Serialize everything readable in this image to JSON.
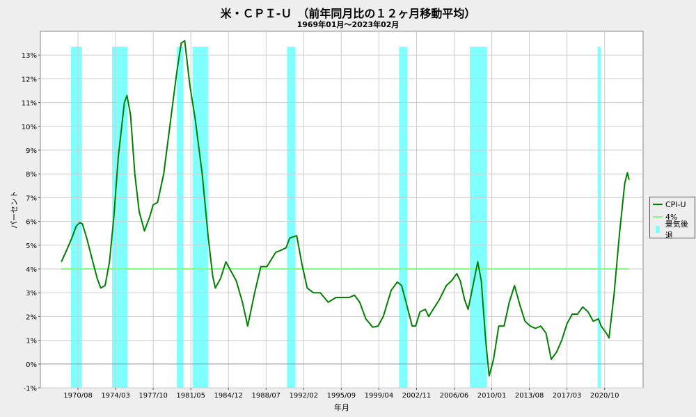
{
  "colors": {
    "cpi": "#008000",
    "ref": "#80ff80",
    "recession": "#80ffff",
    "zero": "#8c8cd2",
    "grid": "#cccccc",
    "plot_bg": "#ffffff",
    "page_bg": "#eeeeee"
  },
  "chart_data": {
    "type": "line",
    "title": "米・ＣＰＩ-Ｕ　（前年同月比の１２ヶ月移動平均）",
    "subtitle": "1969年01月～2023年02月",
    "xlabel": "年月",
    "ylabel": "パーセント",
    "ylim": [
      -1,
      14
    ],
    "yticks": [
      -1,
      0,
      1,
      2,
      3,
      4,
      5,
      6,
      7,
      8,
      9,
      10,
      11,
      12,
      13
    ],
    "ytick_labels": [
      "-1%",
      "0%",
      "1%",
      "2%",
      "3%",
      "4%",
      "5%",
      "6%",
      "7%",
      "8%",
      "9%",
      "10%",
      "11%",
      "12%",
      "13%"
    ],
    "xlim": [
      "1967-01",
      "2024-06"
    ],
    "xtick_labels": [
      "1970/08",
      "1974/03",
      "1977/10",
      "1981/05",
      "1984/12",
      "1988/07",
      "1992/02",
      "1995/09",
      "1999/04",
      "2002/11",
      "2006/06",
      "2010/01",
      "2013/08",
      "2017/03",
      "2020/10"
    ],
    "grid": true,
    "legend_position": "right",
    "legend": [
      "CPI-U",
      "4%",
      "景気後退"
    ],
    "series": [
      {
        "name": "CPI-U",
        "points": [
          [
            "1969-01",
            4.3
          ],
          [
            "1969-06",
            4.7
          ],
          [
            "1970-01",
            5.3
          ],
          [
            "1970-06",
            5.8
          ],
          [
            "1970-10",
            5.95
          ],
          [
            "1971-01",
            5.9
          ],
          [
            "1971-06",
            5.3
          ],
          [
            "1972-01",
            4.3
          ],
          [
            "1972-06",
            3.6
          ],
          [
            "1972-10",
            3.2
          ],
          [
            "1973-03",
            3.3
          ],
          [
            "1973-08",
            4.3
          ],
          [
            "1974-01",
            6.2
          ],
          [
            "1974-06",
            8.7
          ],
          [
            "1975-01",
            11.0
          ],
          [
            "1975-04",
            11.3
          ],
          [
            "1975-08",
            10.5
          ],
          [
            "1976-01",
            8.0
          ],
          [
            "1976-06",
            6.4
          ],
          [
            "1976-12",
            5.6
          ],
          [
            "1977-06",
            6.2
          ],
          [
            "1977-10",
            6.7
          ],
          [
            "1978-03",
            6.8
          ],
          [
            "1978-10",
            8.0
          ],
          [
            "1979-06",
            10.3
          ],
          [
            "1980-01",
            12.3
          ],
          [
            "1980-06",
            13.5
          ],
          [
            "1980-10",
            13.6
          ],
          [
            "1981-04",
            11.7
          ],
          [
            "1981-10",
            10.3
          ],
          [
            "1982-06",
            8.0
          ],
          [
            "1983-01",
            5.3
          ],
          [
            "1983-06",
            3.7
          ],
          [
            "1983-09",
            3.2
          ],
          [
            "1984-03",
            3.6
          ],
          [
            "1984-09",
            4.3
          ],
          [
            "1985-03",
            3.9
          ],
          [
            "1985-09",
            3.5
          ],
          [
            "1986-04",
            2.6
          ],
          [
            "1986-10",
            1.6
          ],
          [
            "1987-06",
            3.0
          ],
          [
            "1988-01",
            4.1
          ],
          [
            "1988-08",
            4.1
          ],
          [
            "1989-06",
            4.7
          ],
          [
            "1990-01",
            4.8
          ],
          [
            "1990-06",
            4.9
          ],
          [
            "1990-10",
            5.3
          ],
          [
            "1991-06",
            5.4
          ],
          [
            "1991-12",
            4.2
          ],
          [
            "1992-06",
            3.2
          ],
          [
            "1993-01",
            3.0
          ],
          [
            "1993-09",
            3.0
          ],
          [
            "1994-06",
            2.6
          ],
          [
            "1995-03",
            2.8
          ],
          [
            "1995-12",
            2.8
          ],
          [
            "1996-06",
            2.8
          ],
          [
            "1996-12",
            2.9
          ],
          [
            "1997-06",
            2.6
          ],
          [
            "1998-01",
            1.9
          ],
          [
            "1998-09",
            1.55
          ],
          [
            "1999-03",
            1.6
          ],
          [
            "1999-09",
            2.0
          ],
          [
            "2000-06",
            3.1
          ],
          [
            "2001-01",
            3.45
          ],
          [
            "2001-06",
            3.3
          ],
          [
            "2001-11",
            2.6
          ],
          [
            "2002-06",
            1.6
          ],
          [
            "2002-10",
            1.6
          ],
          [
            "2003-03",
            2.2
          ],
          [
            "2003-09",
            2.3
          ],
          [
            "2004-01",
            2.0
          ],
          [
            "2004-06",
            2.3
          ],
          [
            "2005-01",
            2.7
          ],
          [
            "2005-09",
            3.3
          ],
          [
            "2006-03",
            3.5
          ],
          [
            "2006-09",
            3.8
          ],
          [
            "2007-01",
            3.5
          ],
          [
            "2007-06",
            2.7
          ],
          [
            "2007-10",
            2.3
          ],
          [
            "2008-03",
            3.2
          ],
          [
            "2008-09",
            4.3
          ],
          [
            "2009-01",
            3.5
          ],
          [
            "2009-06",
            1.0
          ],
          [
            "2009-10",
            -0.5
          ],
          [
            "2010-03",
            0.2
          ],
          [
            "2010-09",
            1.6
          ],
          [
            "2011-03",
            1.6
          ],
          [
            "2011-09",
            2.6
          ],
          [
            "2012-03",
            3.3
          ],
          [
            "2012-09",
            2.5
          ],
          [
            "2013-03",
            1.8
          ],
          [
            "2013-09",
            1.6
          ],
          [
            "2014-03",
            1.5
          ],
          [
            "2014-09",
            1.6
          ],
          [
            "2015-03",
            1.3
          ],
          [
            "2015-09",
            0.2
          ],
          [
            "2016-03",
            0.5
          ],
          [
            "2016-09",
            1.0
          ],
          [
            "2017-03",
            1.7
          ],
          [
            "2017-09",
            2.1
          ],
          [
            "2018-03",
            2.1
          ],
          [
            "2018-09",
            2.4
          ],
          [
            "2019-03",
            2.2
          ],
          [
            "2019-09",
            1.8
          ],
          [
            "2020-03",
            1.9
          ],
          [
            "2020-06",
            1.6
          ],
          [
            "2020-12",
            1.3
          ],
          [
            "2021-03",
            1.1
          ],
          [
            "2021-09",
            3.0
          ],
          [
            "2022-03",
            5.5
          ],
          [
            "2022-09",
            7.6
          ],
          [
            "2022-12",
            8.05
          ],
          [
            "2023-02",
            7.75
          ]
        ]
      },
      {
        "name": "4%",
        "points": [
          [
            "1969-01",
            4.0
          ],
          [
            "2023-02",
            4.0
          ]
        ]
      }
    ],
    "recessions": [
      {
        "start": "1969-12",
        "end": "1970-11"
      },
      {
        "start": "1973-11",
        "end": "1975-03"
      },
      {
        "start": "1980-01",
        "end": "1980-07"
      },
      {
        "start": "1981-07",
        "end": "1982-11"
      },
      {
        "start": "1990-07",
        "end": "1991-03"
      },
      {
        "start": "2001-03",
        "end": "2001-11"
      },
      {
        "start": "2007-12",
        "end": "2009-06"
      },
      {
        "start": "2020-02",
        "end": "2020-04"
      }
    ]
  }
}
